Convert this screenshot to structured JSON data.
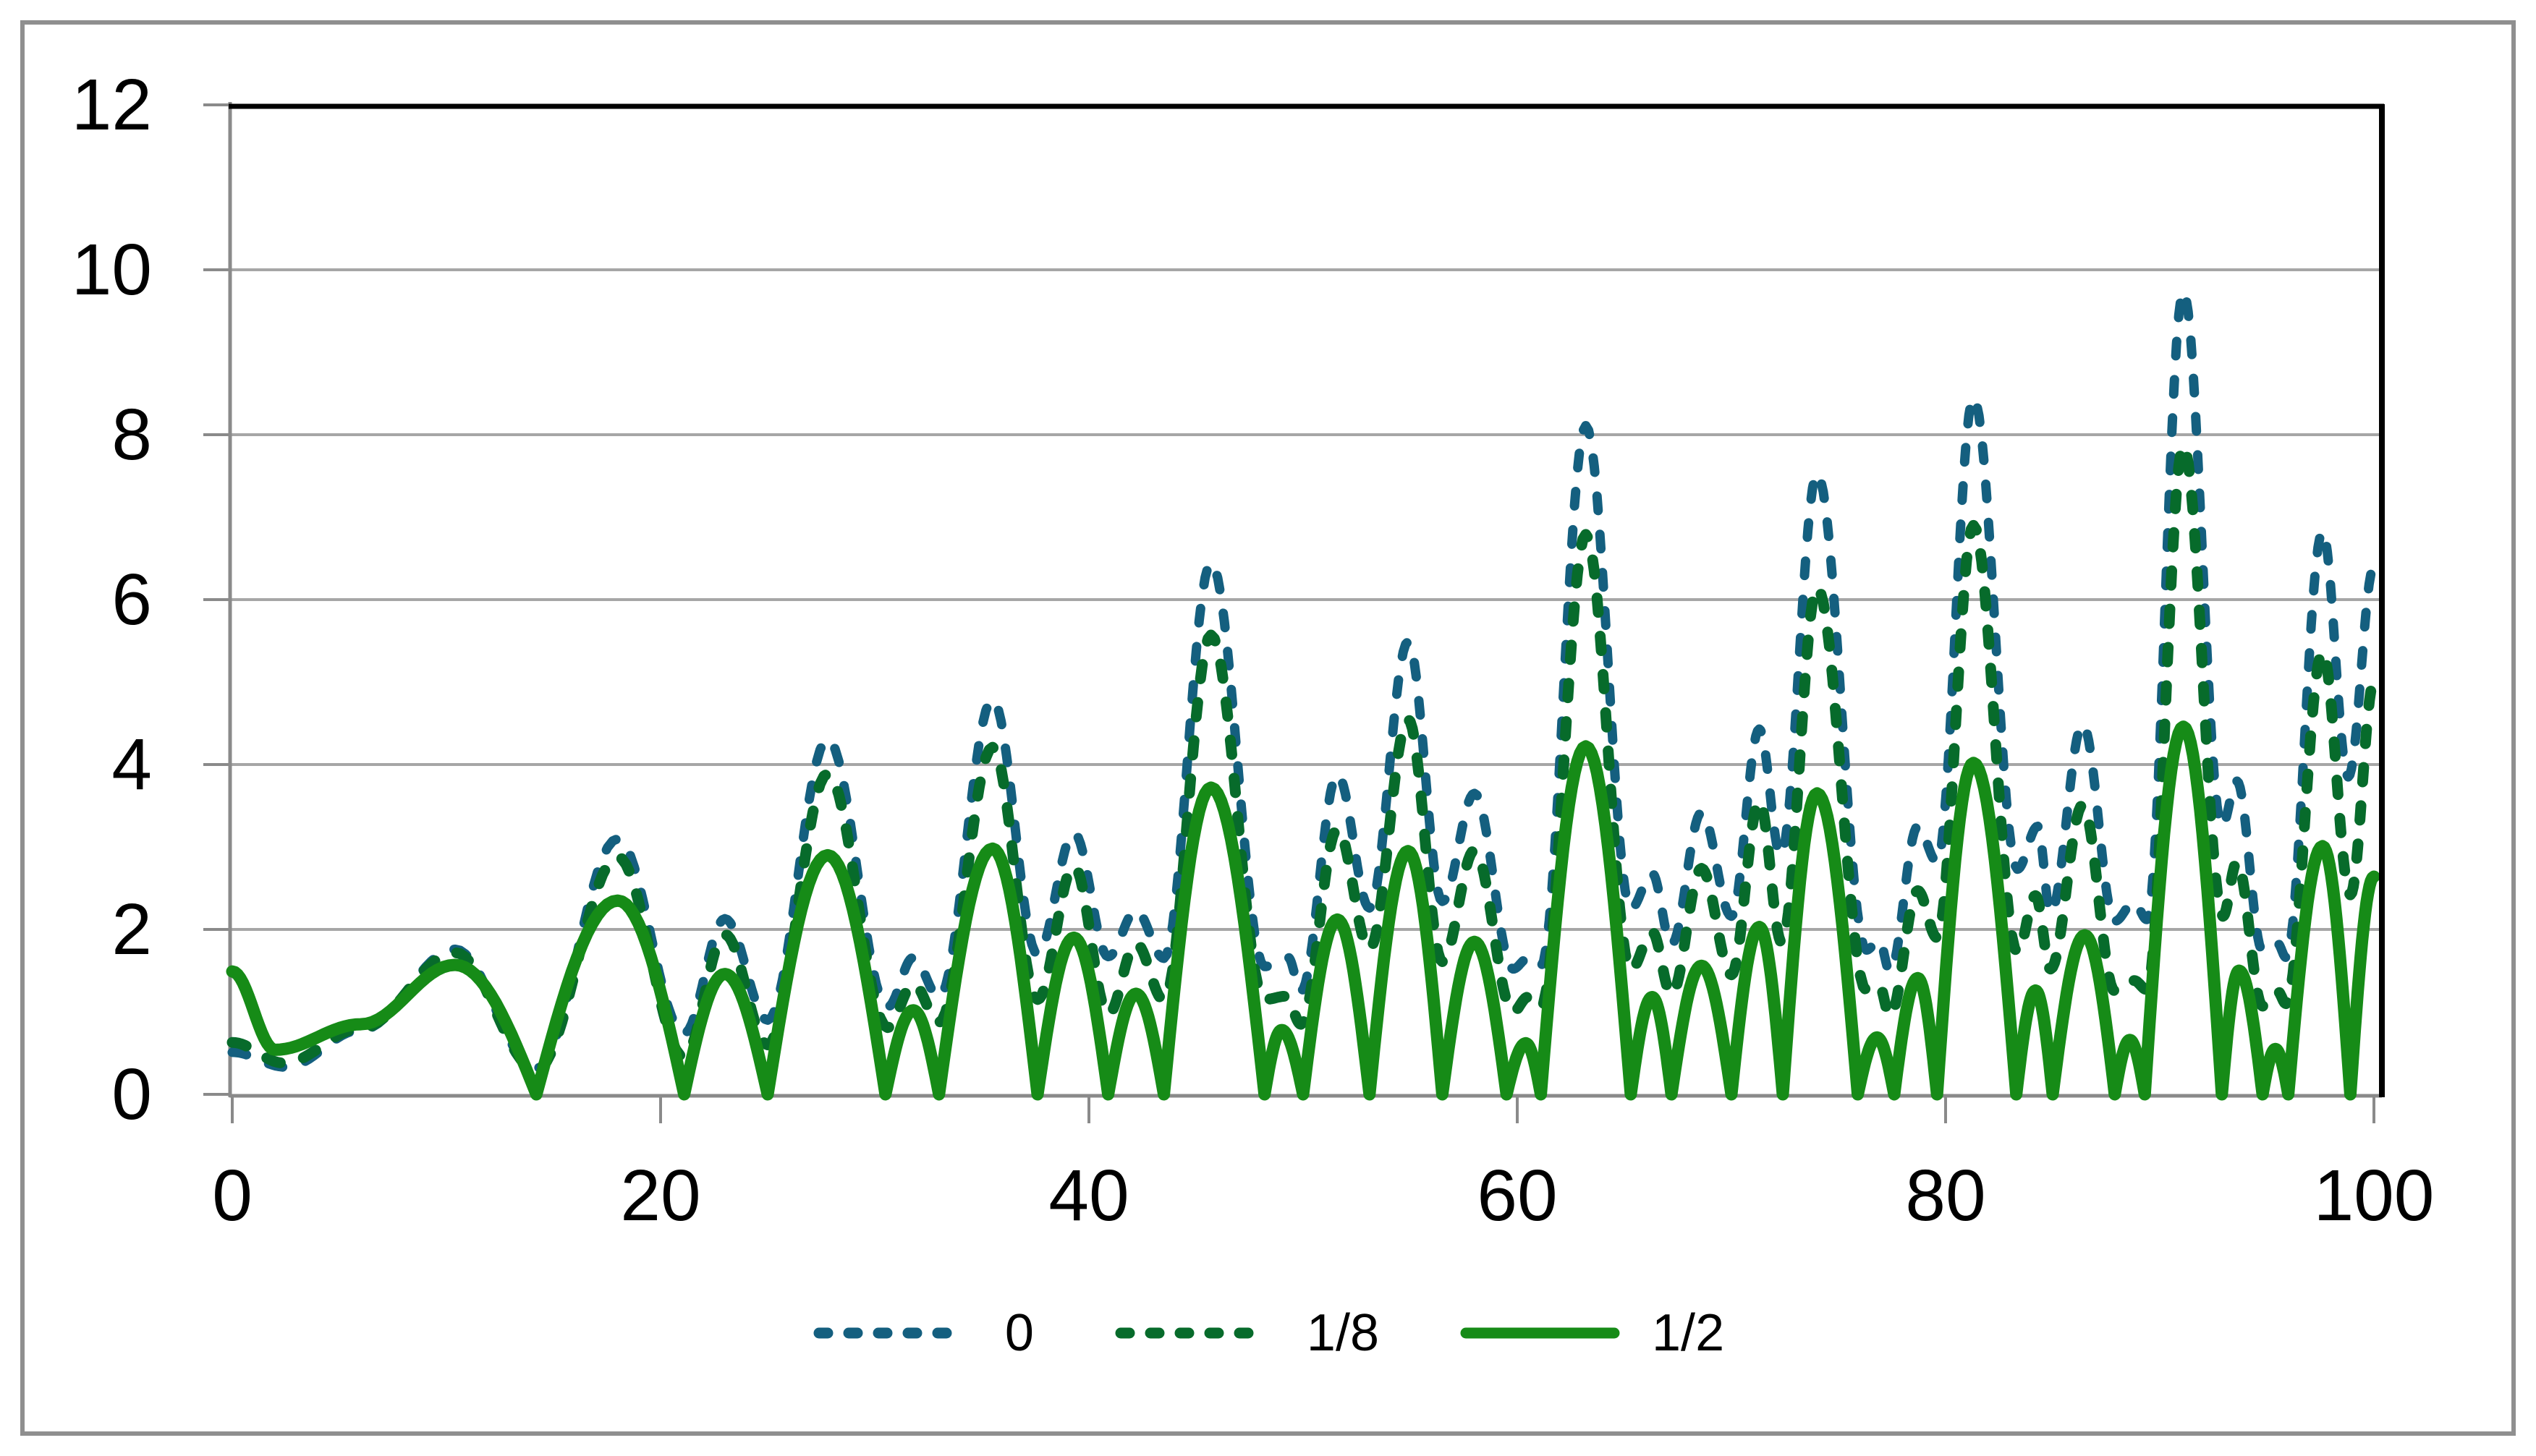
{
  "chart_data": {
    "type": "line",
    "title": "",
    "xlabel": "",
    "ylabel": "",
    "x_axis": {
      "range": [
        0,
        100
      ],
      "ticks": [
        0,
        20,
        40,
        60,
        80,
        100
      ],
      "tick_labels": [
        "0",
        "20",
        "40",
        "60",
        "80",
        "100"
      ]
    },
    "y_axis": {
      "range": [
        0,
        12
      ],
      "ticks": [
        0,
        2,
        4,
        6,
        8,
        10,
        12
      ],
      "tick_labels": [
        "0",
        "2",
        "4",
        "6",
        "8",
        "10",
        "12"
      ]
    },
    "grid": {
      "horizontal_at": [
        2,
        4,
        6,
        8,
        10
      ],
      "vertical": false
    },
    "legend": {
      "position": "bottom-center",
      "entries": [
        "0",
        "1/8",
        "1/2"
      ]
    },
    "colors": {
      "background": "#ffffff",
      "outer_border": "#8f8f8f",
      "plot_border": "#000000",
      "axis": "#8a8a8a",
      "gridline": "#a6a6a6",
      "tick_label": "#000000"
    },
    "series": [
      {
        "name": "0",
        "color": "#145f7f",
        "style": "dashed",
        "stroke_width": 13,
        "segments": [
          [
            0,
            0.51,
            2.5,
            0.33,
            6,
            0.78
          ],
          [
            6,
            0.78,
            10.4,
            1.76,
            14.2,
            0.31
          ],
          [
            14.2,
            0.31,
            18,
            3.1,
            21.1,
            0.74
          ],
          [
            21.1,
            0.74,
            23,
            2.13,
            25,
            0.9
          ],
          [
            25,
            0.9,
            27.8,
            4.31,
            30.6,
            1.06
          ],
          [
            30.6,
            1.06,
            31.8,
            1.66,
            33,
            1.18
          ],
          [
            33,
            1.18,
            35.5,
            4.79,
            37.6,
            1.7
          ],
          [
            37.6,
            1.7,
            39.3,
            3.17,
            40.9,
            1.67
          ],
          [
            40.9,
            1.67,
            42.2,
            2.23,
            43.5,
            1.65
          ],
          [
            43.5,
            1.65,
            45.7,
            6.45,
            48.2,
            1.55
          ],
          [
            48.2,
            1.55,
            49.3,
            1.66,
            49.9,
            1.25
          ],
          [
            49.9,
            1.25,
            51.6,
            3.88,
            53.1,
            2.26
          ],
          [
            53.1,
            2.26,
            54.9,
            5.49,
            56.5,
            2.34
          ],
          [
            56.5,
            2.34,
            58,
            3.65,
            59.8,
            1.52
          ],
          [
            59.8,
            1.52,
            60.5,
            1.65,
            61.1,
            1.55
          ],
          [
            61.1,
            1.55,
            63.2,
            8.11,
            65.3,
            2.25
          ],
          [
            65.3,
            2.25,
            66.3,
            2.68,
            67.2,
            1.82
          ],
          [
            67.2,
            1.82,
            68.6,
            3.42,
            70,
            2.16
          ],
          [
            70,
            2.16,
            71.3,
            4.43,
            72.3,
            2.9
          ],
          [
            72.3,
            2.9,
            74,
            7.53,
            76.3,
            1.75
          ],
          [
            76.3,
            1.75,
            76.9,
            1.87,
            77.4,
            1.49
          ],
          [
            77.4,
            1.49,
            78.7,
            3.25,
            79.6,
            2.82
          ],
          [
            79.6,
            2.82,
            81.3,
            8.45,
            83.35,
            2.73
          ],
          [
            83.35,
            2.73,
            84.3,
            3.25,
            84.9,
            2.2
          ],
          [
            84.9,
            2.2,
            86.4,
            4.49,
            87.9,
            2.1
          ],
          [
            87.9,
            2.1,
            88.8,
            2.33,
            89.4,
            2.12
          ],
          [
            89.4,
            2.12,
            91.1,
            9.74,
            92.9,
            3.25
          ],
          [
            92.9,
            3.25,
            93.6,
            3.8,
            94.8,
            1.74
          ],
          [
            94.8,
            1.74,
            95.5,
            1.83,
            95.9,
            1.66
          ],
          [
            95.9,
            1.66,
            97.6,
            6.83,
            98.8,
            3.85
          ],
          [
            98.8,
            3.85,
            100,
            6.4,
            100,
            6.4
          ]
        ]
      },
      {
        "name": "1/8",
        "color": "#076b2b",
        "style": "dashed",
        "stroke_width": 15,
        "segments": [
          [
            0,
            0.63,
            2.4,
            0.38,
            6,
            0.8
          ],
          [
            6,
            0.8,
            10.4,
            1.72,
            14.2,
            0.3
          ],
          [
            14.2,
            0.3,
            18,
            2.88,
            21.1,
            0.45
          ],
          [
            21.1,
            0.45,
            23,
            1.94,
            25,
            0.6
          ],
          [
            25,
            0.6,
            27.8,
            3.89,
            30.6,
            0.81
          ],
          [
            30.6,
            0.81,
            31.8,
            1.34,
            33,
            0.87
          ],
          [
            33,
            0.87,
            35.5,
            4.21,
            37.6,
            1.15
          ],
          [
            37.6,
            1.15,
            39.3,
            2.77,
            40.9,
            0.97
          ],
          [
            40.9,
            0.97,
            42.2,
            1.83,
            43.5,
            1.14
          ],
          [
            43.5,
            1.14,
            45.7,
            5.57,
            48.2,
            1.15
          ],
          [
            48.2,
            1.15,
            49.2,
            1.19,
            49.9,
            0.85
          ],
          [
            49.9,
            0.85,
            51.6,
            3.22,
            53.1,
            1.76
          ],
          [
            53.1,
            1.76,
            54.9,
            4.55,
            56.5,
            1.61
          ],
          [
            56.5,
            1.61,
            58,
            2.96,
            59.8,
            1.0
          ],
          [
            59.8,
            1.0,
            60.5,
            1.18,
            61.1,
            1.05
          ],
          [
            61.1,
            1.05,
            63.2,
            6.79,
            65.3,
            1.51
          ],
          [
            65.3,
            1.51,
            66.3,
            1.97,
            67.2,
            1.21
          ],
          [
            67.2,
            1.21,
            68.6,
            2.74,
            70,
            1.45
          ],
          [
            70,
            1.45,
            71.3,
            3.56,
            72.35,
            1.84
          ],
          [
            72.35,
            1.84,
            74,
            6.15,
            76.3,
            1.26
          ],
          [
            76.3,
            1.26,
            76.9,
            1.32,
            77.4,
            0.95
          ],
          [
            77.4,
            0.95,
            78.7,
            2.47,
            79.6,
            1.9
          ],
          [
            79.6,
            1.9,
            81.3,
            6.9,
            83.35,
            1.72
          ],
          [
            83.35,
            1.72,
            84.2,
            2.41,
            84.9,
            1.52
          ],
          [
            84.9,
            1.52,
            86.4,
            3.51,
            87.9,
            1.25
          ],
          [
            87.9,
            1.25,
            88.8,
            1.38,
            89.4,
            1.27
          ],
          [
            89.4,
            1.27,
            91.1,
            7.87,
            92.95,
            2.16
          ],
          [
            92.95,
            2.16,
            93.6,
            2.82,
            94.8,
            1.07
          ],
          [
            94.8,
            1.07,
            95.5,
            1.25,
            95.9,
            1.1
          ],
          [
            95.9,
            1.1,
            97.6,
            5.37,
            98.9,
            2.42
          ],
          [
            98.9,
            2.42,
            100,
            5.0,
            100,
            5.0
          ]
        ]
      },
      {
        "name": "1/2",
        "color": "#168b17",
        "style": "solid",
        "stroke_width": 17,
        "segments": [
          [
            0,
            1.49,
            2,
            0.54,
            6,
            0.85
          ],
          [
            6,
            0.85,
            10.4,
            1.57,
            14.2,
            0
          ],
          [
            14.2,
            0,
            18,
            2.35,
            21.1,
            0
          ],
          [
            21.1,
            0,
            23,
            1.46,
            25,
            0
          ],
          [
            25,
            0,
            27.8,
            2.9,
            30.5,
            0
          ],
          [
            30.5,
            0,
            31.8,
            1.02,
            33,
            0
          ],
          [
            33,
            0,
            35.5,
            2.98,
            37.6,
            0
          ],
          [
            37.6,
            0,
            39.3,
            1.9,
            40.9,
            0
          ],
          [
            40.9,
            0,
            42.2,
            1.22,
            43.5,
            0
          ],
          [
            43.5,
            0,
            45.7,
            3.72,
            48.2,
            0
          ],
          [
            48.2,
            0,
            49,
            0.78,
            50,
            0
          ],
          [
            50,
            0,
            51.6,
            2.12,
            53.1,
            0
          ],
          [
            53.1,
            0,
            54.9,
            2.95,
            56.5,
            0
          ],
          [
            56.5,
            0,
            58,
            1.85,
            59.5,
            0
          ],
          [
            59.5,
            0,
            60.4,
            0.62,
            61.1,
            0
          ],
          [
            61.1,
            0,
            63.2,
            4.22,
            65.3,
            0
          ],
          [
            65.3,
            0,
            66.3,
            1.18,
            67.2,
            0
          ],
          [
            67.2,
            0,
            68.6,
            1.56,
            70,
            0
          ],
          [
            70,
            0,
            71.3,
            2.03,
            72.4,
            0
          ],
          [
            72.4,
            0,
            74,
            3.65,
            75.9,
            0
          ],
          [
            75.9,
            0,
            76.8,
            0.69,
            77.6,
            0
          ],
          [
            77.6,
            0,
            78.7,
            1.41,
            79.6,
            0
          ],
          [
            79.6,
            0,
            81.3,
            4.02,
            83.3,
            0
          ],
          [
            83.3,
            0,
            84.2,
            1.26,
            85,
            0
          ],
          [
            85,
            0,
            86.5,
            1.93,
            87.9,
            0
          ],
          [
            87.9,
            0,
            88.6,
            0.66,
            89.3,
            0
          ],
          [
            89.3,
            0,
            91.1,
            4.46,
            92.9,
            0
          ],
          [
            92.9,
            0,
            93.7,
            1.5,
            94.8,
            0
          ],
          [
            94.8,
            0,
            95.4,
            0.55,
            96,
            0
          ],
          [
            96,
            0,
            97.6,
            3.01,
            98.9,
            0
          ],
          [
            98.9,
            0,
            100,
            2.64,
            100,
            2.64
          ]
        ]
      }
    ]
  }
}
